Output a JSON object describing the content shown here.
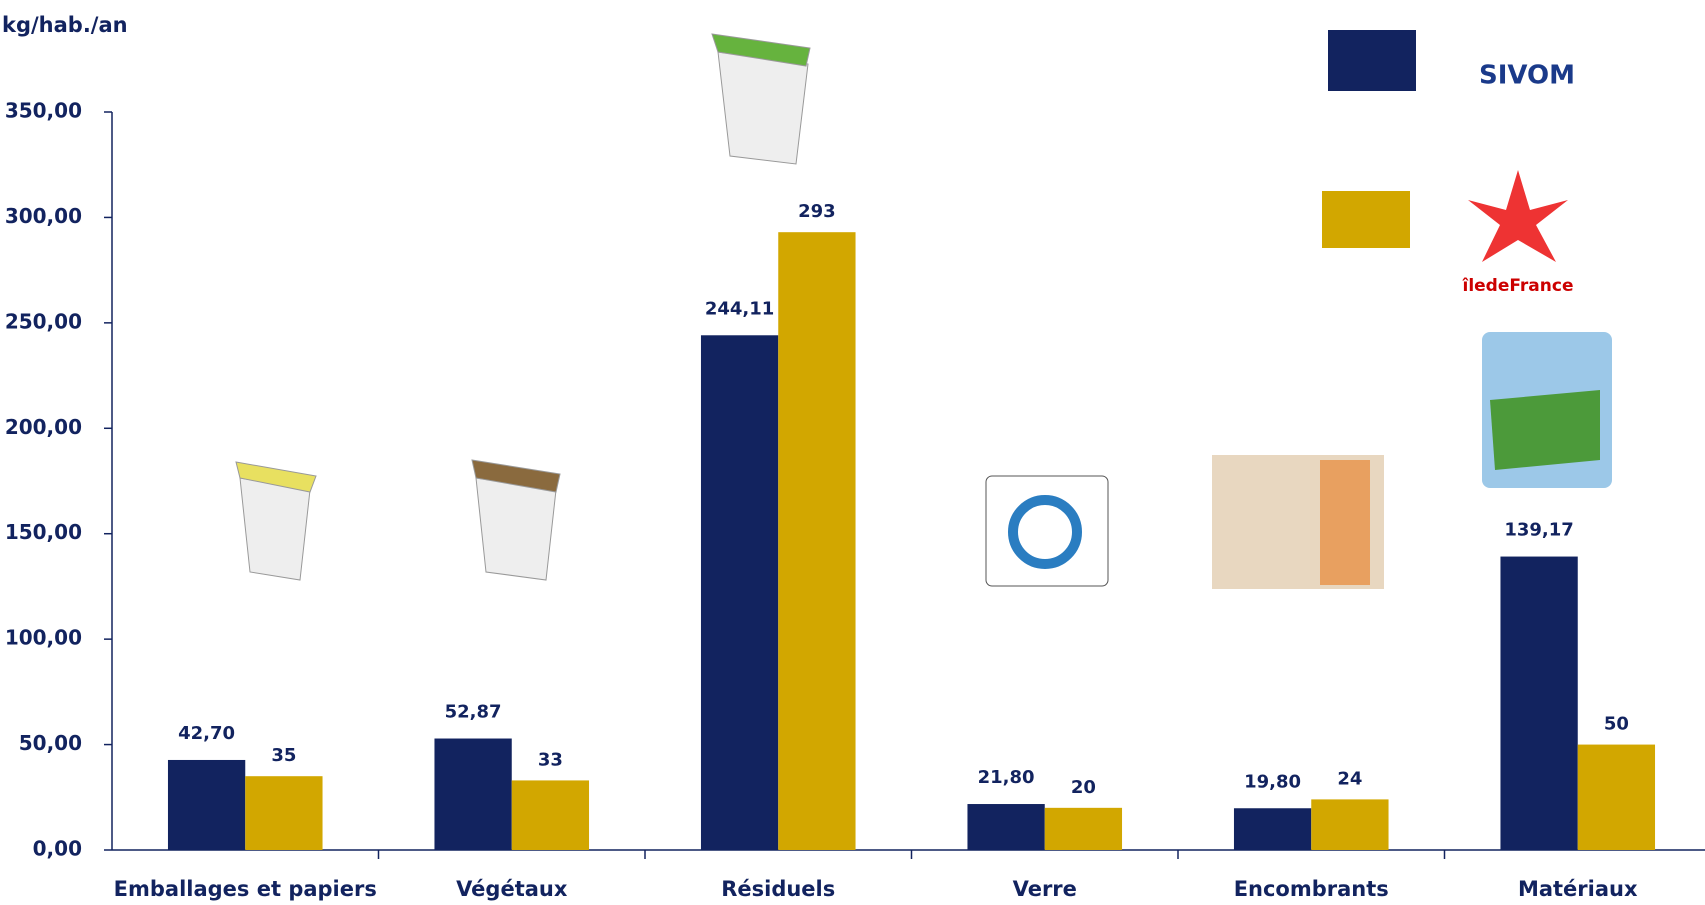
{
  "chart_data": {
    "type": "bar",
    "y_label": "kg/hab./an",
    "categories": [
      "Emballages et papiers",
      "Végétaux",
      "Résiduels",
      "Verre",
      "Encombrants",
      "Matériaux"
    ],
    "series": [
      {
        "name": "SIVOM",
        "color": "#12235f",
        "values": [
          42.7,
          52.87,
          244.11,
          21.8,
          19.8,
          139.17
        ],
        "value_labels": [
          "42,70",
          "52,87",
          "244,11",
          "21,80",
          "19,80",
          "139,17"
        ]
      },
      {
        "name": "îledeFrance",
        "color": "#d2a700",
        "values": [
          35,
          33,
          293,
          20,
          24,
          50
        ]
      }
    ],
    "ylim": [
      0,
      350
    ],
    "yticks": [
      {
        "value": 0,
        "label": "0,00"
      },
      {
        "value": 50,
        "label": "50,00"
      },
      {
        "value": 100,
        "label": "100,00"
      },
      {
        "value": 150,
        "label": "150,00"
      },
      {
        "value": 200,
        "label": "200,00"
      },
      {
        "value": 250,
        "label": "250,00"
      },
      {
        "value": 300,
        "label": "300,00"
      },
      {
        "value": 350,
        "label": "350,00"
      }
    ]
  }
}
